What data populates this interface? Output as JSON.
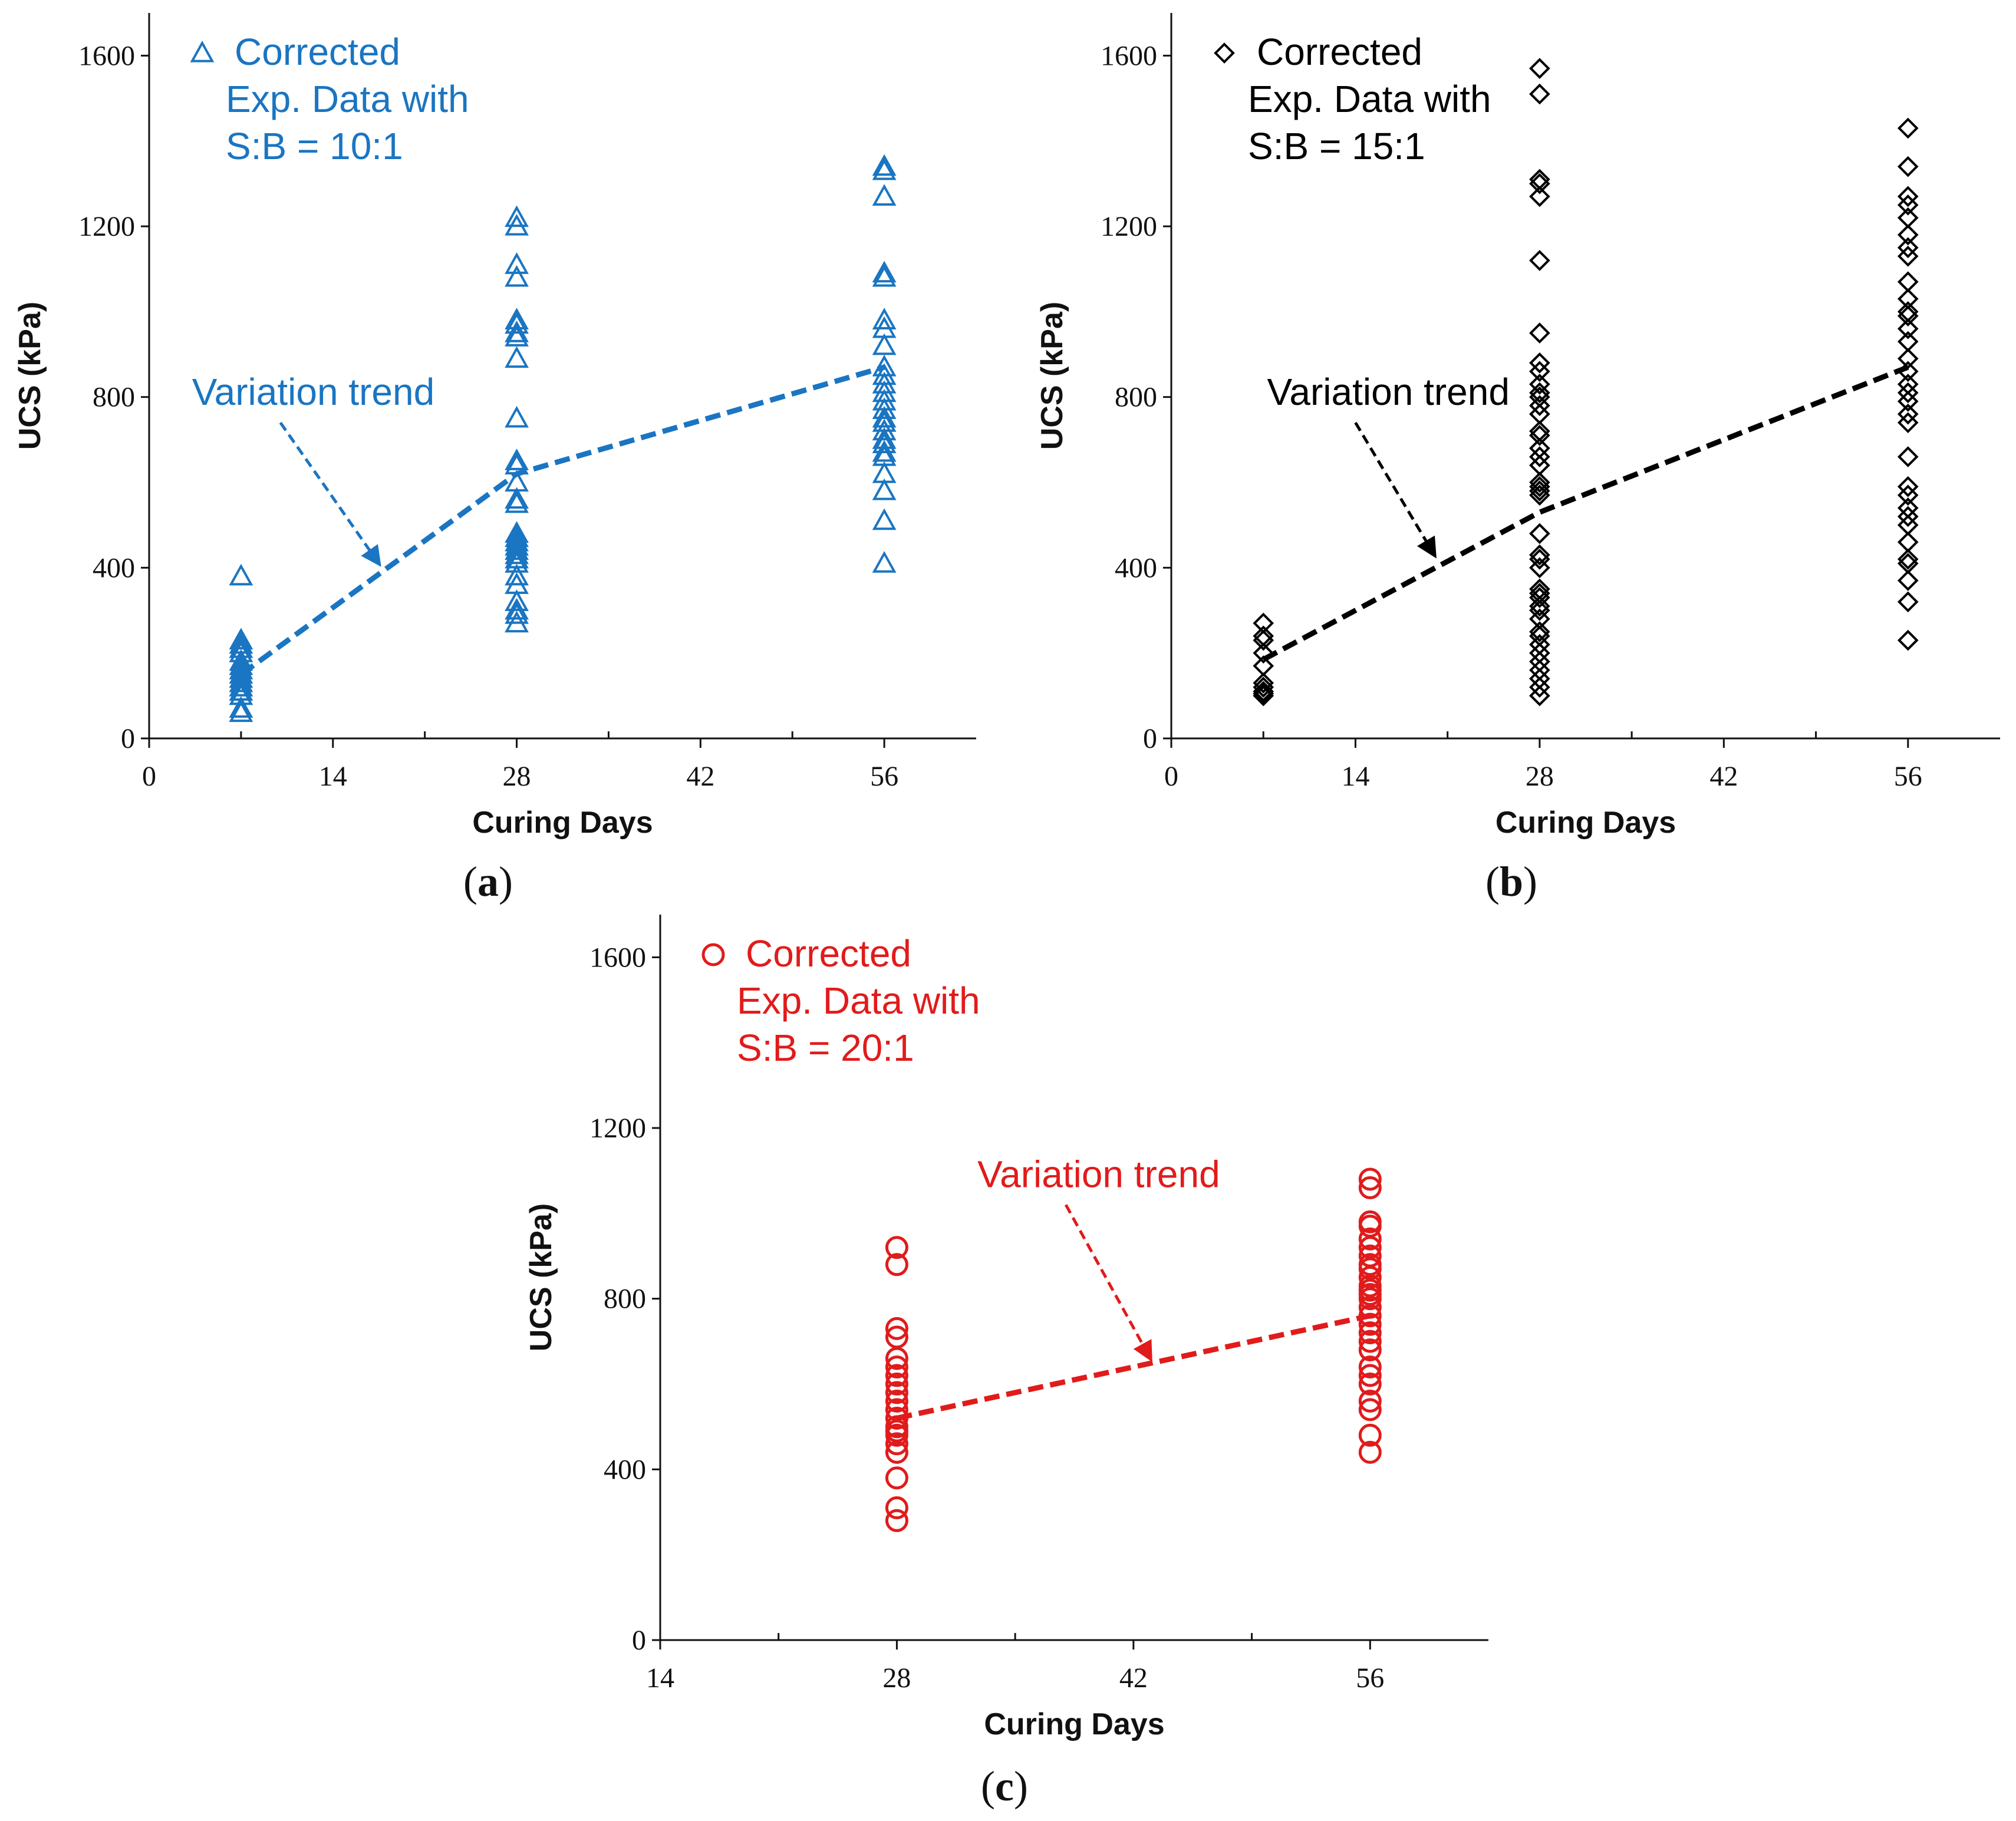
{
  "chart_data": [
    {
      "type": "scatter",
      "panel": "a",
      "caption_open": "(",
      "caption_letter": "a",
      "caption_close": ")",
      "color": "#1a75c2",
      "marker": "triangle",
      "legend": [
        "Corrected",
        "Exp. Data with",
        "S:B = 10:1"
      ],
      "annotation": "Variation trend",
      "xlabel": "Curing Days",
      "ylabel": "UCS  (kPa)",
      "xlim": [
        0,
        63
      ],
      "ylim": [
        0,
        1700
      ],
      "xticks": [
        0,
        14,
        28,
        42,
        56
      ],
      "xminor": [
        7,
        21,
        35,
        49
      ],
      "yticks": [
        0,
        400,
        800,
        1200,
        1600
      ],
      "trend": {
        "x": [
          7,
          28,
          56
        ],
        "y": [
          150,
          620,
          870
        ]
      },
      "annotation_arrow": {
        "x": [
          10,
          17.5
        ],
        "y": [
          740,
          410
        ]
      },
      "series": [
        {
          "x": 7,
          "values": [
            380,
            230,
            220,
            210,
            200,
            180,
            170,
            160,
            150,
            140,
            130,
            120,
            110,
            100,
            70,
            60
          ]
        },
        {
          "x": 28,
          "values": [
            1220,
            1200,
            1110,
            1080,
            980,
            970,
            950,
            940,
            890,
            750,
            650,
            640,
            600,
            560,
            550,
            480,
            470,
            460,
            450,
            440,
            430,
            420,
            410,
            380,
            360,
            320,
            300,
            290,
            270
          ]
        },
        {
          "x": 56,
          "values": [
            1340,
            1330,
            1270,
            1090,
            1080,
            980,
            960,
            920,
            870,
            850,
            830,
            810,
            790,
            770,
            750,
            740,
            720,
            700,
            690,
            670,
            660,
            620,
            580,
            510,
            410
          ]
        }
      ]
    },
    {
      "type": "scatter",
      "panel": "b",
      "caption_open": "(",
      "caption_letter": "b",
      "caption_close": ")",
      "color": "#000000",
      "marker": "diamond",
      "legend": [
        "Corrected",
        "Exp. Data with",
        "S:B = 15:1"
      ],
      "annotation": "Variation trend",
      "xlabel": "Curing Days",
      "ylabel": "UCS  (kPa)",
      "xlim": [
        0,
        63
      ],
      "ylim": [
        0,
        1700
      ],
      "xticks": [
        0,
        14,
        28,
        42,
        56
      ],
      "xminor": [
        7,
        21,
        35,
        49
      ],
      "yticks": [
        0,
        400,
        800,
        1200,
        1600
      ],
      "trend": {
        "x": [
          7,
          28,
          56
        ],
        "y": [
          185,
          530,
          870
        ]
      },
      "annotation_arrow": {
        "x": [
          14,
          20
        ],
        "y": [
          740,
          430
        ]
      },
      "series": [
        {
          "x": 7,
          "values": [
            270,
            240,
            230,
            200,
            170,
            130,
            120,
            110,
            105,
            100
          ]
        },
        {
          "x": 28,
          "values": [
            1570,
            1510,
            1310,
            1300,
            1270,
            1120,
            950,
            880,
            860,
            830,
            810,
            800,
            780,
            760,
            720,
            710,
            680,
            660,
            640,
            600,
            590,
            580,
            570,
            480,
            430,
            420,
            400,
            350,
            340,
            330,
            310,
            300,
            280,
            250,
            240,
            220,
            200,
            180,
            160,
            140,
            120,
            100
          ]
        },
        {
          "x": 56,
          "values": [
            1430,
            1340,
            1270,
            1250,
            1220,
            1180,
            1150,
            1130,
            1070,
            1030,
            1000,
            990,
            960,
            930,
            890,
            860,
            830,
            810,
            790,
            760,
            740,
            660,
            590,
            570,
            540,
            520,
            500,
            460,
            420,
            410,
            370,
            320,
            230
          ]
        }
      ]
    },
    {
      "type": "scatter",
      "panel": "c",
      "caption_open": "(",
      "caption_letter": "c",
      "caption_close": ")",
      "color": "#e11b1b",
      "marker": "circle",
      "legend": [
        "Corrected",
        "Exp. Data with",
        "S:B = 20:1"
      ],
      "annotation": "Variation trend",
      "xlabel": "Curing Days",
      "ylabel": "UCS  (kPa)",
      "xlim": [
        14,
        63
      ],
      "ylim": [
        0,
        1700
      ],
      "xticks": [
        14,
        28,
        42,
        56
      ],
      "xminor": [
        21,
        35,
        49
      ],
      "yticks": [
        0,
        400,
        800,
        1200,
        1600
      ],
      "trend": {
        "x": [
          28,
          56
        ],
        "y": [
          520,
          760
        ]
      },
      "annotation_arrow": {
        "x": [
          38,
          43
        ],
        "y": [
          1020,
          660
        ]
      },
      "series": [
        {
          "x": 28,
          "values": [
            920,
            880,
            730,
            710,
            660,
            640,
            620,
            600,
            580,
            560,
            540,
            520,
            500,
            490,
            480,
            460,
            440,
            380,
            310,
            280
          ]
        },
        {
          "x": 56,
          "values": [
            1080,
            1060,
            980,
            970,
            940,
            920,
            900,
            880,
            870,
            850,
            830,
            820,
            810,
            800,
            780,
            760,
            740,
            720,
            700,
            680,
            640,
            620,
            600,
            560,
            540,
            480,
            440
          ]
        }
      ]
    }
  ]
}
